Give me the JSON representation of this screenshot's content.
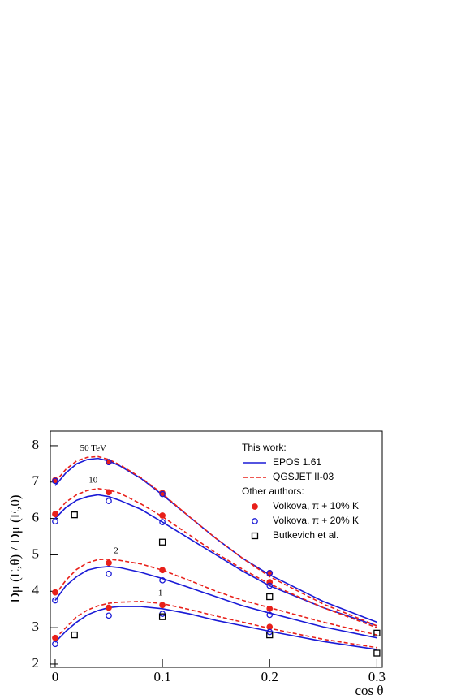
{
  "chart_data": {
    "type": "line",
    "xlabel": "cos θ",
    "ylabel": "Dμ (E,θ) / Dμ (E,0)",
    "xlim": [
      -0.0045,
      0.305
    ],
    "ylim": [
      1.91,
      8.4
    ],
    "xticks": [
      0,
      0.1,
      0.2,
      0.3
    ],
    "yticks": [
      2,
      3,
      4,
      5,
      6,
      7,
      8
    ],
    "legend": "upper right",
    "legend_headers": [
      "This work:",
      "Other authors:"
    ],
    "energies": [
      "50 TeV",
      "10",
      "2",
      "1"
    ],
    "series": [
      {
        "name": "EPOS 1.61",
        "kind": "line",
        "color": "#1a1ad6",
        "style": "solid",
        "x": [
          0,
          0.01,
          0.02,
          0.03,
          0.04,
          0.05,
          0.06,
          0.08,
          0.1,
          0.125,
          0.15,
          0.175,
          0.2,
          0.25,
          0.3
        ],
        "curves": [
          [
            6.9,
            7.25,
            7.5,
            7.62,
            7.65,
            7.58,
            7.45,
            7.1,
            6.65,
            6.05,
            5.45,
            4.9,
            4.45,
            3.72,
            3.15
          ],
          [
            6.0,
            6.3,
            6.5,
            6.6,
            6.65,
            6.6,
            6.5,
            6.25,
            5.9,
            5.45,
            5.0,
            4.55,
            4.15,
            3.55,
            3.05
          ],
          [
            3.75,
            4.15,
            4.4,
            4.58,
            4.65,
            4.68,
            4.65,
            4.52,
            4.35,
            4.1,
            3.85,
            3.6,
            3.4,
            3.02,
            2.72
          ],
          [
            2.6,
            2.9,
            3.15,
            3.35,
            3.47,
            3.55,
            3.58,
            3.58,
            3.52,
            3.38,
            3.2,
            3.05,
            2.9,
            2.62,
            2.4
          ]
        ]
      },
      {
        "name": "QGSJET II-03",
        "kind": "line",
        "color": "#e8201a",
        "style": "dashed",
        "x": [
          0,
          0.01,
          0.02,
          0.03,
          0.04,
          0.05,
          0.06,
          0.08,
          0.1,
          0.125,
          0.15,
          0.175,
          0.2,
          0.25,
          0.3
        ],
        "curves": [
          [
            7.0,
            7.35,
            7.58,
            7.68,
            7.7,
            7.62,
            7.48,
            7.12,
            6.68,
            6.05,
            5.45,
            4.9,
            4.4,
            3.65,
            3.05
          ],
          [
            6.1,
            6.45,
            6.65,
            6.77,
            6.82,
            6.78,
            6.7,
            6.4,
            6.05,
            5.55,
            5.05,
            4.6,
            4.2,
            3.55,
            3.0
          ],
          [
            3.9,
            4.3,
            4.6,
            4.78,
            4.87,
            4.88,
            4.85,
            4.75,
            4.58,
            4.3,
            4.0,
            3.75,
            3.55,
            3.15,
            2.8
          ],
          [
            2.7,
            3.0,
            3.3,
            3.48,
            3.6,
            3.67,
            3.7,
            3.72,
            3.66,
            3.5,
            3.32,
            3.15,
            2.98,
            2.68,
            2.45
          ]
        ]
      },
      {
        "name": "Volkova, π + 10% K",
        "kind": "scatter",
        "marker": "filled-circle",
        "color": "#e8201a",
        "x": [
          0,
          0.05,
          0.1,
          0.2,
          0,
          0.05,
          0.1,
          0.2,
          0,
          0.05,
          0.1,
          0.2,
          0,
          0.05,
          0.1,
          0.2
        ],
        "values": [
          7.05,
          7.55,
          6.7,
          4.5,
          6.12,
          6.72,
          6.08,
          4.25,
          3.97,
          4.78,
          4.58,
          3.52,
          2.72,
          3.55,
          3.62,
          3.02
        ]
      },
      {
        "name": "Volkova, π + 20% K",
        "kind": "scatter",
        "marker": "open-circle",
        "color": "#1a1ad6",
        "x": [
          0,
          0.05,
          0.1,
          0.2,
          0,
          0.05,
          0.1,
          0.2,
          0,
          0.05,
          0.1,
          0.2,
          0,
          0.05,
          0.1,
          0.2
        ],
        "values": [
          7.03,
          7.55,
          6.67,
          4.5,
          5.92,
          6.48,
          5.9,
          4.15,
          3.75,
          4.48,
          4.3,
          3.35,
          2.55,
          3.33,
          3.38,
          2.88
        ]
      },
      {
        "name": "Butkevich et al.",
        "kind": "scatter",
        "marker": "open-square",
        "color": "#000000",
        "x": [
          0.018,
          0.1,
          0.2,
          0.3,
          0.018,
          0.1,
          0.2,
          0.3
        ],
        "values": [
          6.1,
          5.35,
          3.85,
          2.85,
          2.8,
          3.3,
          2.8,
          2.3
        ]
      }
    ]
  }
}
